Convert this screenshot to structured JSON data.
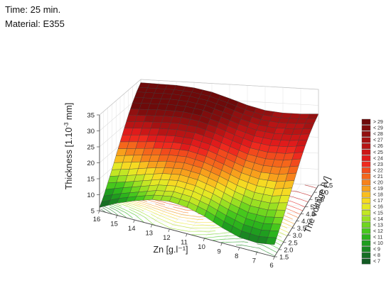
{
  "annotations": {
    "time": "Time: 25 min.",
    "material": "Material: E355"
  },
  "chart_data": {
    "type": "surface3d",
    "z_axis": {
      "label_main": "Thickness [1.10",
      "label_sup": "-3",
      "label_end": " mm]",
      "ticks": [
        "5",
        "10",
        "15",
        "20",
        "25",
        "30",
        "35"
      ],
      "range": [
        5,
        35
      ]
    },
    "x_axis": {
      "label": "Zn [g.l⁻¹]",
      "ticks": [
        "16",
        "15",
        "14",
        "13",
        "12",
        "11",
        "10",
        "9",
        "8",
        "7",
        "6"
      ],
      "range": [
        6,
        16
      ]
    },
    "y_axis": {
      "label": "The voltage [V]",
      "ticks": [
        "1.5",
        "2.0",
        "2.5",
        "3.0",
        "3.5",
        "4.0",
        "4.5",
        "5.0",
        "5.5",
        "6.0",
        "6.5"
      ],
      "range": [
        1.5,
        6.5
      ]
    },
    "legend": {
      "placement": "right",
      "items": [
        {
          "label": "> 29",
          "color": "#6e0a0a"
        },
        {
          "label": "< 29",
          "color": "#800d0d"
        },
        {
          "label": "< 28",
          "color": "#921010"
        },
        {
          "label": "< 27",
          "color": "#a51212"
        },
        {
          "label": "< 26",
          "color": "#b81414"
        },
        {
          "label": "< 25",
          "color": "#cc1717"
        },
        {
          "label": "< 24",
          "color": "#e01b1b"
        },
        {
          "label": "< 23",
          "color": "#ee2a1e"
        },
        {
          "label": "< 22",
          "color": "#f24a1c"
        },
        {
          "label": "< 21",
          "color": "#f5661b"
        },
        {
          "label": "< 20",
          "color": "#f7821b"
        },
        {
          "label": "< 19",
          "color": "#f8a01c"
        },
        {
          "label": "< 18",
          "color": "#f9be1f"
        },
        {
          "label": "< 17",
          "color": "#f6da22"
        },
        {
          "label": "< 16",
          "color": "#e4e824"
        },
        {
          "label": "< 15",
          "color": "#c2e624"
        },
        {
          "label": "< 14",
          "color": "#9ae022"
        },
        {
          "label": "< 13",
          "color": "#6fd61f"
        },
        {
          "label": "< 12",
          "color": "#46c81c"
        },
        {
          "label": "< 11",
          "color": "#2cb41c"
        },
        {
          "label": "< 10",
          "color": "#1f9e1f"
        },
        {
          "label": "< 9",
          "color": "#1a8722"
        },
        {
          "label": "< 8",
          "color": "#166f24"
        },
        {
          "label": "< 7",
          "color": "#135a24"
        }
      ]
    },
    "surface": {
      "zn": [
        16,
        15,
        14,
        13,
        12,
        11,
        10,
        9,
        8,
        7,
        6
      ],
      "voltage": [
        1.5,
        2.0,
        2.5,
        3.0,
        3.5,
        4.0,
        4.5,
        5.0,
        5.5,
        6.0,
        6.5
      ],
      "z_by_voltage_rows": [
        [
          6.0,
          8.8,
          11.0,
          12.8,
          13.7,
          13.3,
          11.9,
          9.8,
          8.2,
          7.9,
          8.8
        ],
        [
          8.5,
          10.6,
          12.4,
          14.2,
          15.2,
          14.9,
          13.6,
          11.7,
          10.2,
          9.8,
          10.8
        ],
        [
          11.5,
          13.0,
          14.6,
          16.2,
          17.1,
          16.7,
          15.4,
          13.5,
          12.0,
          11.8,
          12.8
        ],
        [
          14.5,
          15.8,
          17.2,
          18.5,
          19.2,
          18.7,
          17.3,
          15.4,
          14.1,
          14.0,
          15.2
        ],
        [
          17.8,
          18.9,
          20.0,
          21.0,
          21.4,
          20.7,
          19.2,
          17.4,
          16.3,
          16.3,
          17.6
        ],
        [
          21.0,
          21.9,
          22.8,
          23.5,
          23.6,
          22.7,
          21.1,
          19.4,
          18.5,
          18.7,
          20.0
        ],
        [
          24.2,
          24.9,
          25.6,
          26.0,
          25.8,
          24.7,
          23.0,
          21.4,
          20.7,
          21.0,
          22.2
        ],
        [
          27.2,
          27.7,
          28.2,
          28.4,
          27.9,
          26.6,
          24.9,
          23.4,
          22.8,
          23.1,
          24.1
        ],
        [
          29.9,
          30.2,
          30.5,
          30.4,
          29.7,
          28.2,
          26.5,
          25.1,
          24.6,
          24.8,
          25.5
        ],
        [
          32.2,
          32.3,
          32.4,
          32.1,
          31.2,
          29.6,
          27.8,
          26.5,
          26.0,
          26.1,
          26.6
        ],
        [
          34.0,
          33.9,
          33.8,
          33.3,
          32.3,
          30.6,
          28.8,
          27.5,
          27.0,
          27.0,
          27.3
        ]
      ]
    }
  }
}
